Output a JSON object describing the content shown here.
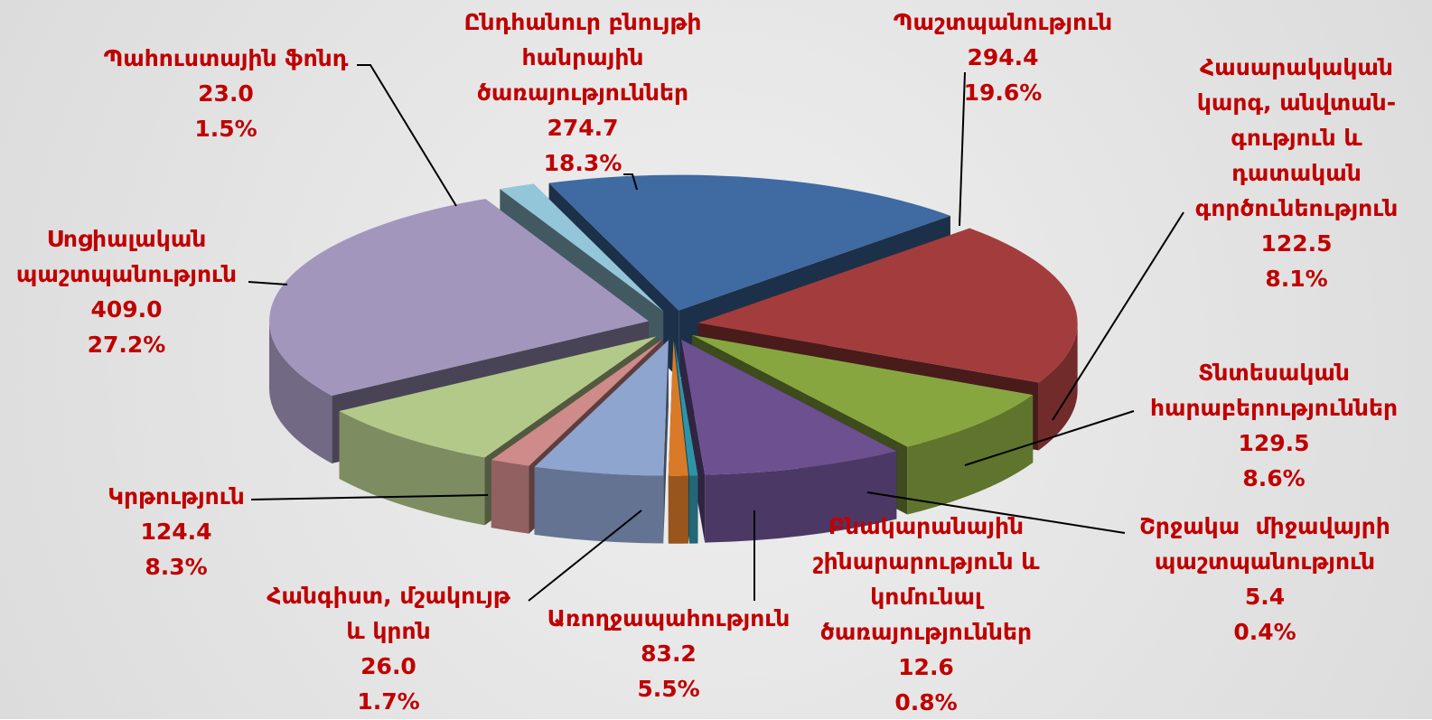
{
  "chart_data": {
    "type": "pie",
    "categories": [
      "Ընդհանուր բնույթի\nհանրային\nծառայություններ",
      "Պաշտպանություն",
      "Հասարակական\nկարգ, անվտան-\nգություն և\nդատական\nգործունեություն",
      "Տնտեսական\nհարաբերություններ",
      "Շրջակա  միջավայրի\nպաշտպանություն",
      "Բնակարանային\nշինարարություն և\nկոմունալ\nծառայություններ",
      "Առողջապահություն",
      "Հանգիստ, մշակույթ\nև կրոն",
      "Կրթություն",
      "Սոցիալական\nպաշտպանություն",
      "Պահուստային ֆոնդ"
    ],
    "values": [
      274.7,
      294.4,
      122.5,
      129.5,
      5.4,
      12.6,
      83.2,
      26.0,
      124.4,
      409.0,
      23.0
    ],
    "value_labels": [
      "274.7",
      "294.4",
      "122.5",
      "129.5",
      "5.4",
      "12.6",
      "83.2",
      "26.0",
      "124.4",
      "409.0",
      "23.0"
    ],
    "percent_labels": [
      "18.3%",
      "19.6%",
      "8.1%",
      "8.6%",
      "0.4%",
      "0.8%",
      "5.5%",
      "1.7%",
      "8.3%",
      "27.2%",
      "1.5%"
    ],
    "colors": [
      "#3f6aa2",
      "#a33d3d",
      "#87a640",
      "#6c5090",
      "#2f93a8",
      "#d97a28",
      "#8ea5cf",
      "#cf8a8a",
      "#b3c98a",
      "#a396bd",
      "#93c6d8"
    ]
  }
}
